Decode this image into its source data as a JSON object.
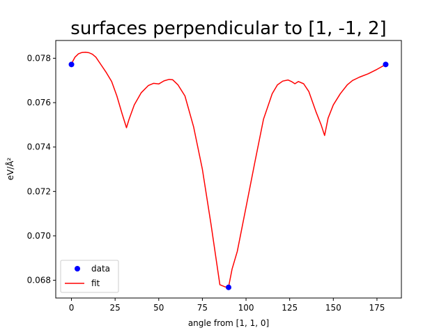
{
  "chart_data": {
    "type": "line",
    "title": "surfaces perpendicular to [1, -1, 2]",
    "xlabel": "angle from [1, 1, 0]",
    "ylabel": "eV/Å²",
    "xlim": [
      -9,
      189
    ],
    "ylim": [
      0.0672,
      0.0788
    ],
    "xticks": [
      0,
      25,
      50,
      75,
      100,
      125,
      150,
      175
    ],
    "yticks": [
      0.068,
      0.07,
      0.072,
      0.074,
      0.076,
      0.078
    ],
    "ytick_labels": [
      "0.068",
      "0.070",
      "0.072",
      "0.074",
      "0.076",
      "0.078"
    ],
    "legend_position": "lower-left",
    "series": [
      {
        "name": "data",
        "kind": "scatter",
        "color": "#0000ff",
        "x": [
          0,
          90,
          180
        ],
        "y": [
          0.07772,
          0.06768,
          0.07772
        ]
      },
      {
        "name": "fit",
        "kind": "line",
        "color": "#ff0000",
        "x": [
          0,
          2,
          4,
          6,
          8,
          10,
          12,
          14,
          17,
          20,
          23,
          26,
          29,
          31.5,
          33,
          36,
          40,
          44,
          47,
          50,
          53,
          56,
          58,
          61,
          65,
          70,
          75,
          80,
          85,
          88,
          90,
          92,
          95,
          100,
          105,
          110,
          115,
          118,
          121,
          124,
          126,
          128,
          130,
          133,
          136,
          140,
          143,
          145,
          147,
          150,
          154,
          158,
          161,
          165,
          170,
          175,
          180
        ],
        "y": [
          0.07775,
          0.07805,
          0.0782,
          0.07826,
          0.07827,
          0.07825,
          0.07818,
          0.07805,
          0.0777,
          0.07735,
          0.07695,
          0.0763,
          0.0755,
          0.07487,
          0.07525,
          0.0759,
          0.07645,
          0.07677,
          0.07687,
          0.07684,
          0.07698,
          0.07705,
          0.07703,
          0.0768,
          0.0763,
          0.0749,
          0.073,
          0.0705,
          0.0678,
          0.0677,
          0.0677,
          0.0685,
          0.0693,
          0.0713,
          0.0733,
          0.07525,
          0.0764,
          0.0768,
          0.07697,
          0.07702,
          0.07695,
          0.07685,
          0.07695,
          0.07685,
          0.0765,
          0.0756,
          0.075,
          0.07452,
          0.0753,
          0.0759,
          0.0764,
          0.0768,
          0.077,
          0.07715,
          0.0773,
          0.0775,
          0.07772
        ]
      }
    ]
  }
}
